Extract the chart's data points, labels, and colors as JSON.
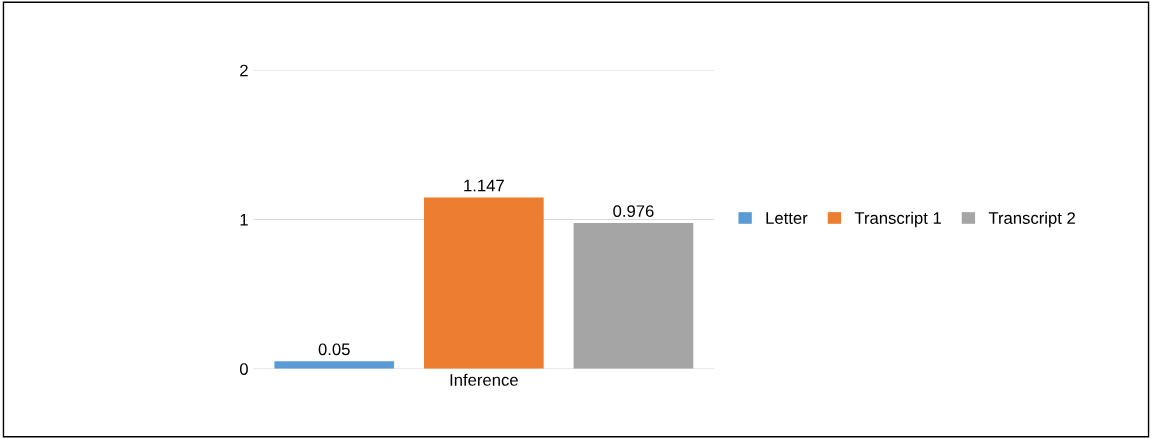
{
  "chart_data": {
    "type": "bar",
    "categories": [
      "Inference"
    ],
    "series": [
      {
        "name": "Letter",
        "color": "#5b9bd5",
        "values": [
          0.05
        ]
      },
      {
        "name": "Transcript 1",
        "color": "#ed7d31",
        "values": [
          1.147
        ]
      },
      {
        "name": "Transcript 2",
        "color": "#a5a5a5",
        "values": [
          0.976
        ]
      }
    ],
    "ylim": [
      0,
      2
    ],
    "yticks": [
      0,
      1,
      2
    ],
    "grid": "y",
    "legend": "right",
    "data_labels": true
  }
}
